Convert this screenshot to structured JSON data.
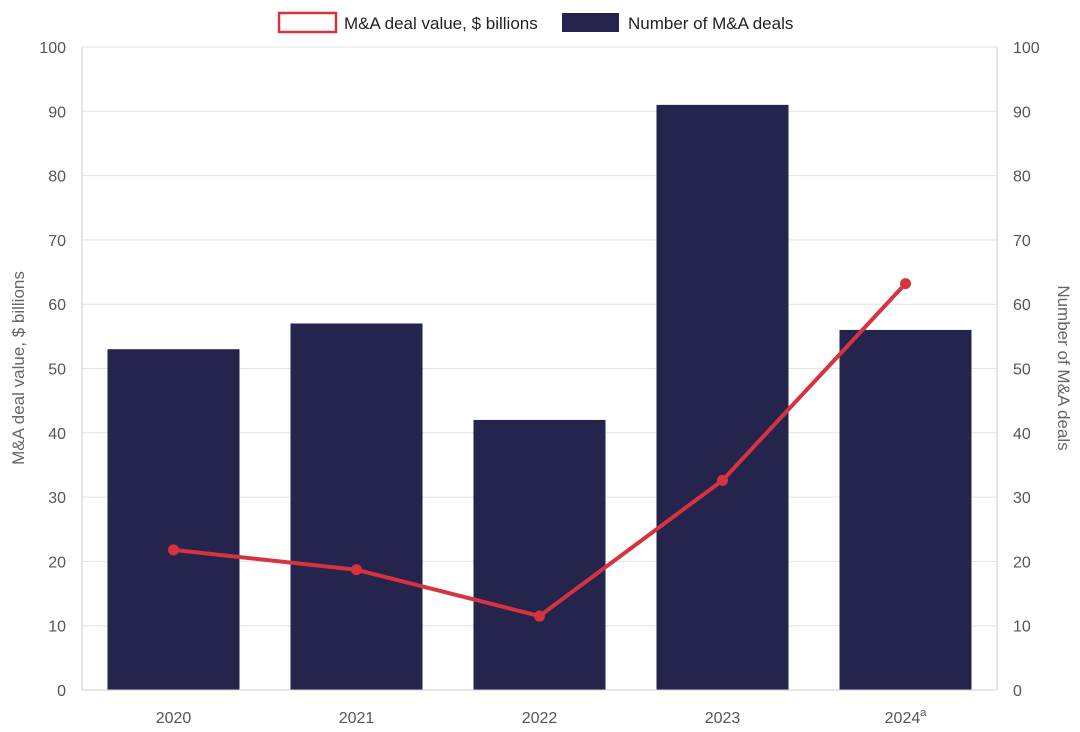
{
  "chart_data": {
    "type": "bar",
    "categories": [
      "2020",
      "2021",
      "2022",
      "2023",
      "2024"
    ],
    "category_footnote": {
      "index": 4,
      "mark": "a"
    },
    "series": [
      {
        "name": "Number of M&A deals",
        "type": "bar",
        "axis": "right",
        "color": "#25244d",
        "values": [
          53,
          57,
          42,
          91,
          56
        ]
      },
      {
        "name": "M&A deal value, $ billions",
        "type": "line",
        "axis": "left",
        "color": "#d6333f",
        "values": [
          21.8,
          18.7,
          11.5,
          32.6,
          63.2
        ]
      }
    ],
    "ylabel_left": "M&A deal value, $ billions",
    "ylabel_right": "Number of M&A deals",
    "ylim_left": [
      0,
      100
    ],
    "ylim_right": [
      0,
      100
    ],
    "yticks": [
      "0",
      "10",
      "20",
      "30",
      "40",
      "50",
      "60",
      "70",
      "80",
      "90",
      "100"
    ],
    "grid": true,
    "legend": {
      "position": "top-center",
      "items": [
        "M&A deal value, $ billions",
        "Number of M&A deals"
      ]
    }
  }
}
